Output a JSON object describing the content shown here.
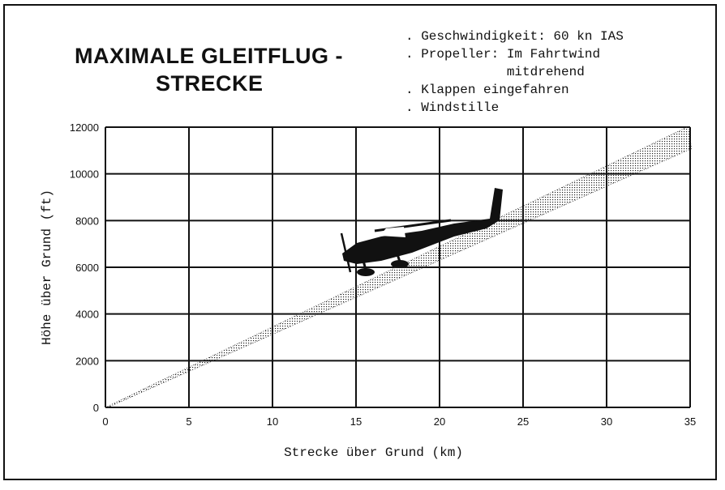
{
  "title": {
    "line1": "MAXIMALE GLEITFLUG -",
    "line2": "STRECKE"
  },
  "conditions": [
    ". Geschwindigkeit: 60 kn IAS",
    ". Propeller: Im Fahrtwind",
    "             mitdrehend",
    ". Klappen eingefahren",
    ". Windstille"
  ],
  "chart_data": {
    "type": "area",
    "title": "MAXIMALE GLEITFLUG - STRECKE",
    "xlabel": "Strecke über Grund (km)",
    "ylabel": "Höhe über Grund (ft)",
    "xlim": [
      0,
      35
    ],
    "ylim": [
      0,
      12000
    ],
    "xticks": [
      0,
      5,
      10,
      15,
      20,
      25,
      30,
      35
    ],
    "yticks": [
      0,
      2000,
      4000,
      6000,
      8000,
      10000,
      12000
    ],
    "grid": true,
    "band": {
      "x_at_top": 35,
      "y_upper_at_35km": 12000,
      "y_lower_at_35km": 11500,
      "x": [
        0,
        35
      ],
      "upper": [
        0,
        12000
      ],
      "lower": [
        0,
        11500
      ]
    },
    "annotations": [
      "aircraft-silhouette"
    ]
  }
}
